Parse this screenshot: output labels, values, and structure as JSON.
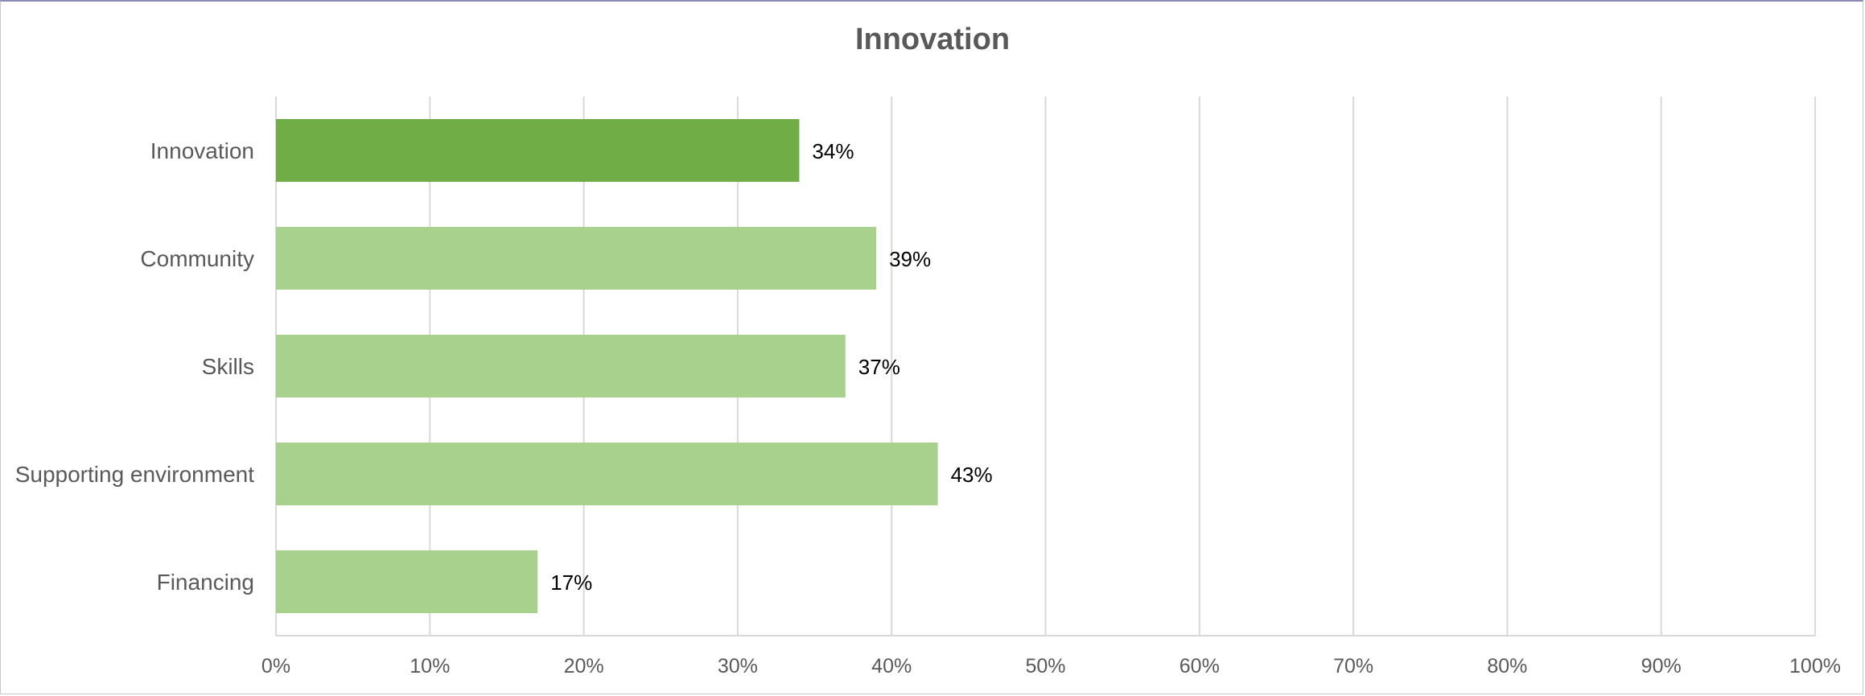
{
  "chart_data": {
    "type": "bar",
    "orientation": "horizontal",
    "title": "Innovation",
    "categories": [
      "Innovation",
      "Community",
      "Skills",
      "Supporting environment",
      "Financing"
    ],
    "values": [
      34,
      39,
      37,
      43,
      17
    ],
    "data_labels": [
      "34%",
      "39%",
      "37%",
      "43%",
      "17%"
    ],
    "x_ticks": [
      "0%",
      "10%",
      "20%",
      "30%",
      "40%",
      "50%",
      "60%",
      "70%",
      "80%",
      "90%",
      "100%"
    ],
    "xlim": [
      0,
      100
    ],
    "grid": "vertical",
    "legend": "none",
    "colors": {
      "highlight": "#70ad47",
      "default": "#a9d18e",
      "grid": "#d9d9d9",
      "text": "#595959"
    },
    "highlight_category": "Innovation"
  }
}
